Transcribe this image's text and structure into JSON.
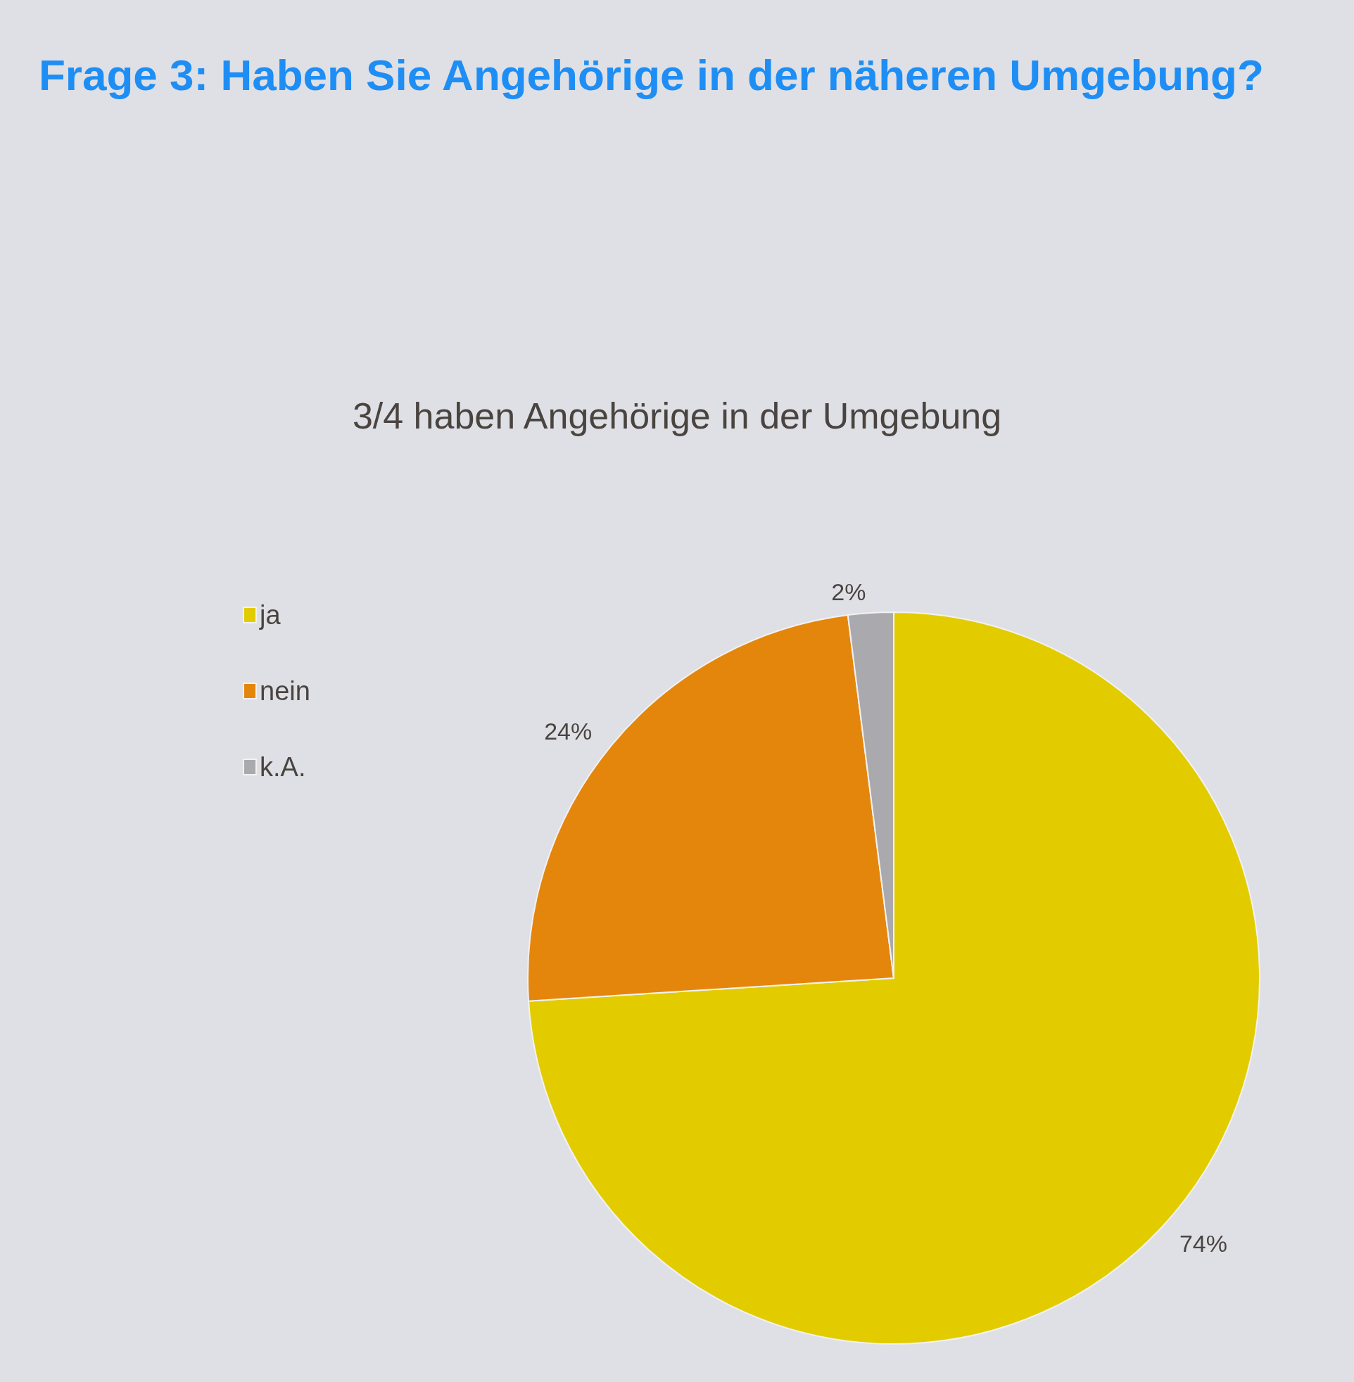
{
  "chart_data": {
    "type": "pie",
    "title": "Frage 3: Haben Sie Angehörige in der näheren Umgebung?",
    "subtitle": "3/4 haben Angehörige in der Umgebung",
    "categories": [
      "ja",
      "nein",
      "k.A."
    ],
    "values": [
      74,
      24,
      2
    ],
    "colors": [
      "#e2cc00",
      "#e5860c",
      "#a9a9ae"
    ],
    "value_labels": [
      "74%",
      "24%",
      "2%"
    ],
    "legend": "left"
  }
}
